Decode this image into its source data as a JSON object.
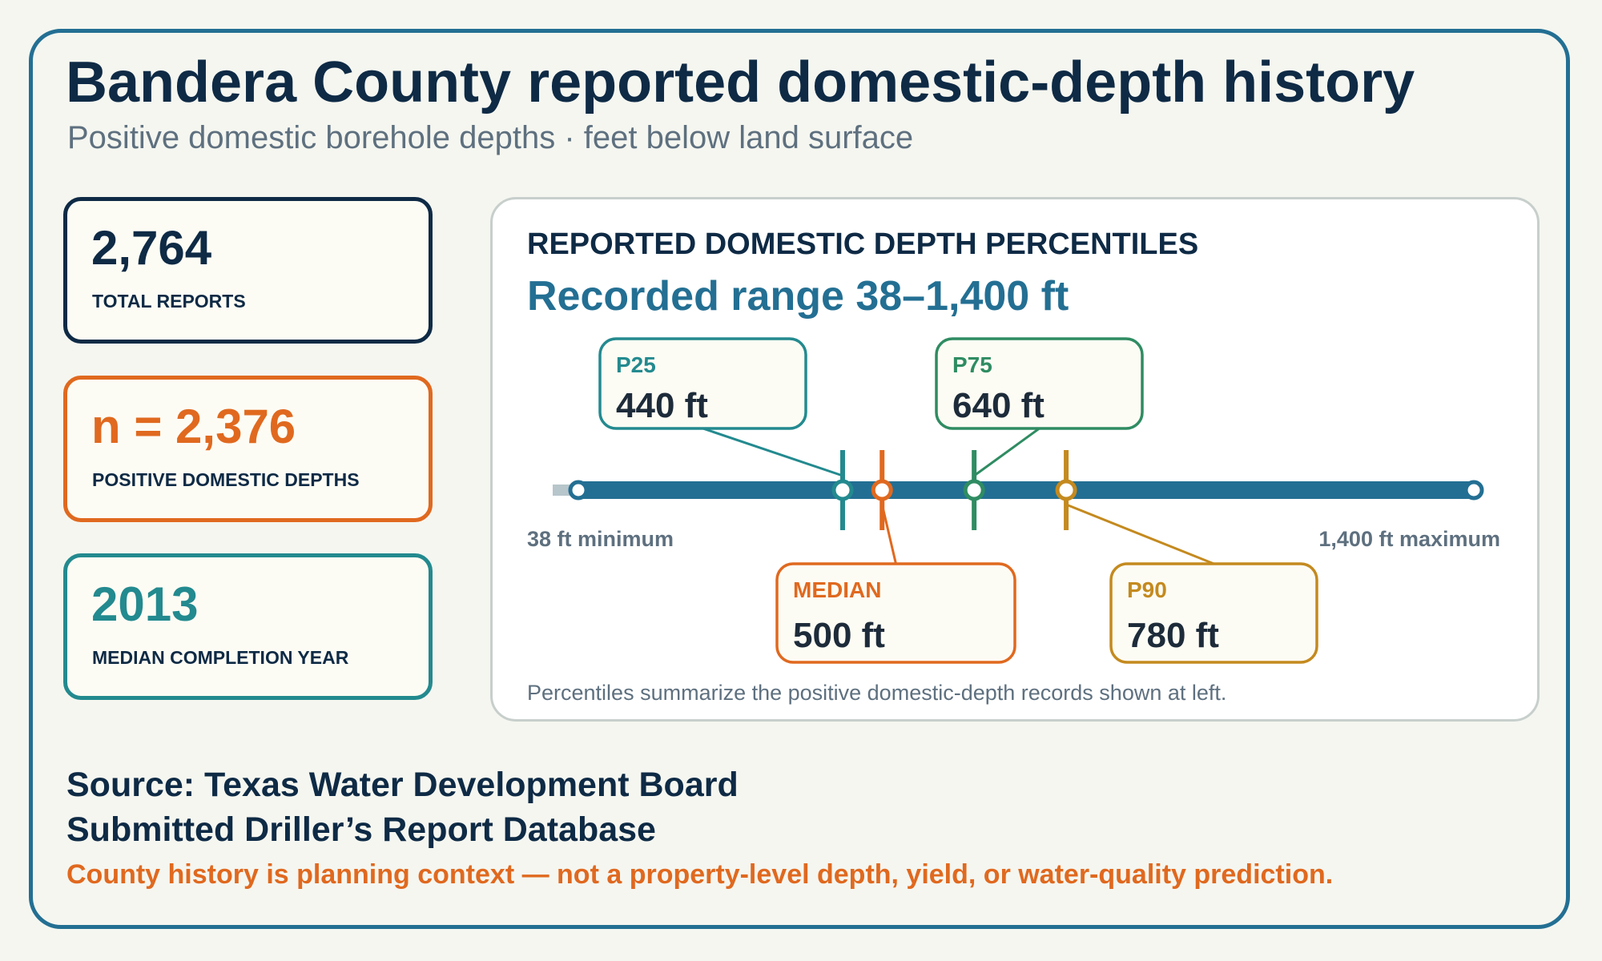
{
  "header": {
    "title": "Bandera County reported domestic-depth history",
    "subtitle": "Positive domestic borehole depths · feet below land surface"
  },
  "kpis": [
    {
      "value": "2,764",
      "label": "TOTAL REPORTS",
      "color": "#0e2a45"
    },
    {
      "value": "n = 2,376",
      "label": "POSITIVE DOMESTIC DEPTHS",
      "color": "#e0691f"
    },
    {
      "value": "2013",
      "label": "MEDIAN COMPLETION YEAR",
      "color": "#238a8f"
    }
  ],
  "chart_data": {
    "type": "range-percentile",
    "title": "REPORTED DOMESTIC DEPTH PERCENTILES",
    "subtitle": "Recorded range 38–1,400 ft",
    "unit": "ft",
    "range": [
      38,
      1400
    ],
    "min_label": "38 ft minimum",
    "max_label": "1,400 ft maximum",
    "colors": {
      "bar": "#236f93",
      "stub": "#b7c6cb"
    },
    "markers": [
      {
        "name": "P25",
        "value": 440,
        "value_label": "440 ft",
        "position": "above",
        "color": "#238a8f"
      },
      {
        "name": "MEDIAN",
        "value": 500,
        "value_label": "500 ft",
        "position": "below",
        "color": "#e0691f"
      },
      {
        "name": "P75",
        "value": 640,
        "value_label": "640 ft",
        "position": "above",
        "color": "#2f8c62"
      },
      {
        "name": "P90",
        "value": 780,
        "value_label": "780 ft",
        "position": "below",
        "color": "#c48a1f"
      }
    ],
    "footnote": "Percentiles summarize the positive domestic-depth records shown at left."
  },
  "source": {
    "line1": "Source: Texas Water Development Board",
    "line2": "Submitted Driller’s Report Database"
  },
  "disclaimer": "County history is planning context — not a property-level depth, yield, or water-quality prediction."
}
